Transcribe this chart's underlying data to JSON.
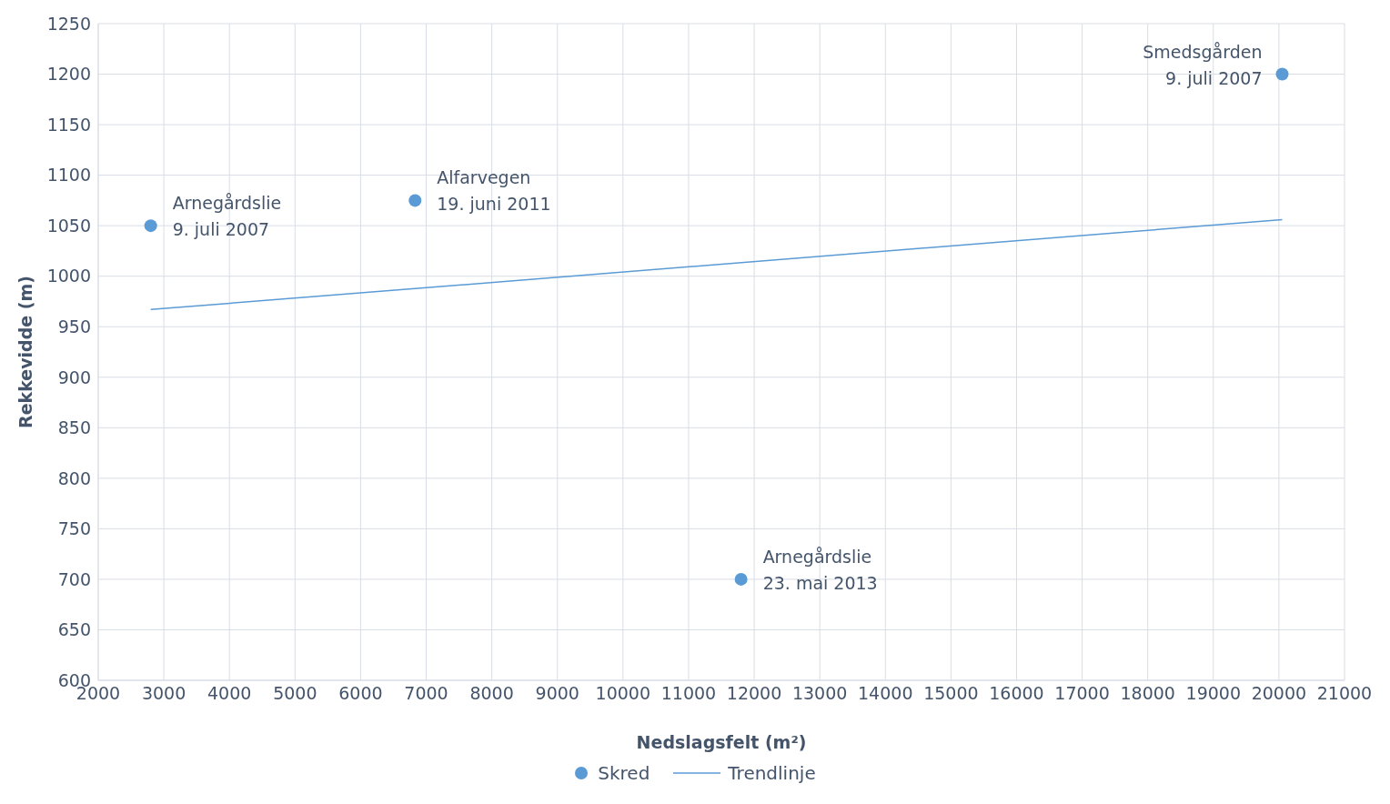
{
  "chart_data": {
    "type": "scatter",
    "xlabel": "Nedslagsfelt (m²)",
    "ylabel": "Rekkevidde (m)",
    "xlim": [
      2000,
      21000
    ],
    "xticks": [
      2000,
      3000,
      4000,
      5000,
      6000,
      7000,
      8000,
      9000,
      10000,
      11000,
      12000,
      13000,
      14000,
      15000,
      16000,
      17000,
      18000,
      19000,
      20000,
      21000
    ],
    "ylim": [
      600,
      1250
    ],
    "yticks": [
      600,
      650,
      700,
      750,
      800,
      850,
      900,
      950,
      1000,
      1050,
      1100,
      1150,
      1200,
      1250
    ],
    "grid": true,
    "legend": "bottom",
    "series": [
      {
        "name": "Skred",
        "marker": "circle",
        "color": "#5b9bd5",
        "x": [
          2800,
          6830,
          11800,
          20050
        ],
        "values": [
          1050,
          1075,
          700,
          1200
        ]
      },
      {
        "name": "Trendlinje",
        "type": "line",
        "color": "#5b9bd5",
        "x": [
          2800,
          20050
        ],
        "values": [
          967,
          1056
        ]
      }
    ],
    "annotations": [
      {
        "text": "Arnegårdslie\n9. juli 2007",
        "x": 2800,
        "y": 1050
      },
      {
        "text": "Alfarvegen\n19. juni 2011",
        "x": 6830,
        "y": 1075
      },
      {
        "text": "Arnegårdslie\n23. mai 2013",
        "x": 11800,
        "y": 700
      },
      {
        "text": "Smedsgården\n9. juli 2007",
        "x": 20050,
        "y": 1200
      }
    ]
  }
}
